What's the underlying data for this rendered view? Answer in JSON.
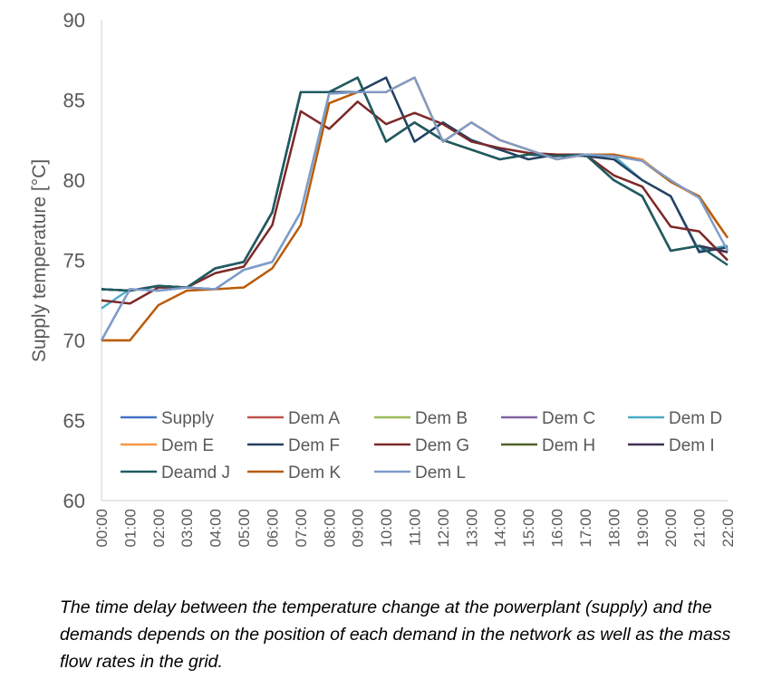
{
  "chart_data": {
    "type": "line",
    "title": "",
    "xlabel": "",
    "ylabel": "Supply temperature [°C]",
    "ylim": [
      60,
      90
    ],
    "yticks": [
      60,
      65,
      70,
      75,
      80,
      85,
      90
    ],
    "grid": false,
    "legend_position": "bottom-inside",
    "categories": [
      "00:00",
      "01:00",
      "02:00",
      "03:00",
      "04:00",
      "05:00",
      "06:00",
      "07:00",
      "08:00",
      "09:00",
      "10:00",
      "11:00",
      "12:00",
      "13:00",
      "14:00",
      "15:00",
      "16:00",
      "17:00",
      "18:00",
      "19:00",
      "20:00",
      "21:00",
      "22:00"
    ],
    "series": [
      {
        "name": "Supply",
        "color": "#4472C4",
        "values": [
          73.2,
          73.1,
          73.4,
          73.3,
          74.5,
          74.9,
          78.0,
          85.5,
          85.5,
          86.4,
          82.4,
          83.6,
          82.5,
          81.9,
          81.3,
          81.6,
          81.5,
          81.6,
          80.0,
          79.0,
          75.6,
          75.9,
          75.5
        ]
      },
      {
        "name": "Dem A",
        "color": "#C0504D",
        "values": [
          72.5,
          72.3,
          73.3,
          73.3,
          74.2,
          74.6,
          77.2,
          84.3,
          83.2,
          84.9,
          83.5,
          84.2,
          83.5,
          82.4,
          82.0,
          81.7,
          81.6,
          81.6,
          80.3,
          79.6,
          77.1,
          76.8,
          75.0
        ]
      },
      {
        "name": "Dem B",
        "color": "#9BBB59",
        "values": [
          73.2,
          73.1,
          73.4,
          73.3,
          74.5,
          74.9,
          78.0,
          85.5,
          85.5,
          86.4,
          82.4,
          83.6,
          82.5,
          81.9,
          81.3,
          81.6,
          81.5,
          81.6,
          80.0,
          79.0,
          75.6,
          75.9,
          75.5
        ]
      },
      {
        "name": "Dem C",
        "color": "#8064A2",
        "values": [
          70.0,
          73.2,
          73.1,
          73.3,
          73.2,
          74.4,
          74.9,
          78.0,
          85.4,
          85.5,
          86.4,
          82.4,
          83.6,
          82.5,
          81.9,
          81.3,
          81.6,
          81.5,
          81.5,
          80.0,
          79.0,
          75.6,
          75.9
        ]
      },
      {
        "name": "Dem D",
        "color": "#4BACC6",
        "values": [
          72.0,
          73.2,
          73.1,
          73.3,
          73.2,
          74.4,
          74.9,
          78.0,
          85.4,
          85.5,
          86.4,
          82.4,
          83.6,
          82.5,
          81.9,
          81.3,
          81.6,
          81.5,
          81.5,
          80.0,
          79.0,
          75.6,
          75.9
        ]
      },
      {
        "name": "Dem E",
        "color": "#F79646",
        "values": [
          70.0,
          70.0,
          72.2,
          73.1,
          73.2,
          73.3,
          74.5,
          77.2,
          84.8,
          85.5,
          85.5,
          86.4,
          82.4,
          83.6,
          82.5,
          81.9,
          81.3,
          81.6,
          81.6,
          81.3,
          79.9,
          78.9,
          76.4
        ]
      },
      {
        "name": "Dem F",
        "color": "#243F60",
        "values": [
          73.2,
          73.1,
          73.4,
          73.3,
          74.5,
          74.9,
          78.0,
          85.5,
          85.5,
          85.5,
          86.4,
          82.4,
          83.6,
          82.5,
          81.9,
          81.3,
          81.6,
          81.5,
          81.3,
          80.0,
          79.0,
          75.5,
          75.8
        ]
      },
      {
        "name": "Dem G",
        "color": "#7B2A2A",
        "values": [
          72.5,
          72.3,
          73.3,
          73.3,
          74.2,
          74.6,
          77.2,
          84.3,
          83.2,
          84.9,
          83.5,
          84.2,
          83.5,
          82.4,
          82.0,
          81.7,
          81.6,
          81.6,
          80.3,
          79.6,
          77.1,
          76.8,
          75.0
        ]
      },
      {
        "name": "Dem H",
        "color": "#4F6228",
        "values": [
          73.2,
          73.1,
          73.4,
          73.3,
          74.5,
          74.9,
          78.0,
          85.5,
          85.5,
          86.4,
          82.4,
          83.6,
          82.5,
          81.9,
          81.3,
          81.6,
          81.5,
          81.6,
          80.0,
          79.0,
          75.6,
          75.9,
          75.5
        ]
      },
      {
        "name": "Dem I",
        "color": "#3F3151",
        "values": [
          73.2,
          73.1,
          73.4,
          73.3,
          74.5,
          74.9,
          78.0,
          85.5,
          85.5,
          86.4,
          82.4,
          83.6,
          82.5,
          81.9,
          81.3,
          81.6,
          81.5,
          81.6,
          80.0,
          79.0,
          75.6,
          75.9,
          75.5
        ]
      },
      {
        "name": "Deamd J",
        "color": "#1F5C63",
        "values": [
          73.2,
          73.1,
          73.4,
          73.3,
          74.5,
          74.9,
          78.0,
          85.5,
          85.5,
          86.4,
          82.4,
          83.6,
          82.5,
          81.9,
          81.3,
          81.6,
          81.5,
          81.6,
          80.0,
          79.0,
          75.6,
          75.9,
          74.7
        ]
      },
      {
        "name": "Dem K",
        "color": "#B85C0A",
        "values": [
          70.0,
          70.0,
          72.2,
          73.1,
          73.2,
          73.3,
          74.5,
          77.2,
          84.8,
          85.5,
          85.5,
          86.4,
          82.4,
          83.6,
          82.5,
          81.9,
          81.3,
          81.6,
          81.6,
          81.2,
          79.9,
          79.0,
          76.4
        ]
      },
      {
        "name": "Dem L",
        "color": "#7F9CC9",
        "values": [
          70.0,
          73.2,
          73.1,
          73.3,
          73.2,
          74.4,
          74.9,
          78.0,
          85.4,
          85.5,
          85.5,
          86.4,
          82.4,
          83.6,
          82.5,
          81.9,
          81.3,
          81.6,
          81.5,
          81.2,
          80.0,
          78.9,
          75.6
        ]
      }
    ]
  },
  "caption": "The time delay between the temperature change at the powerplant (supply) and the demands depends on the position of each demand in the network as well as the mass flow rates in the grid."
}
